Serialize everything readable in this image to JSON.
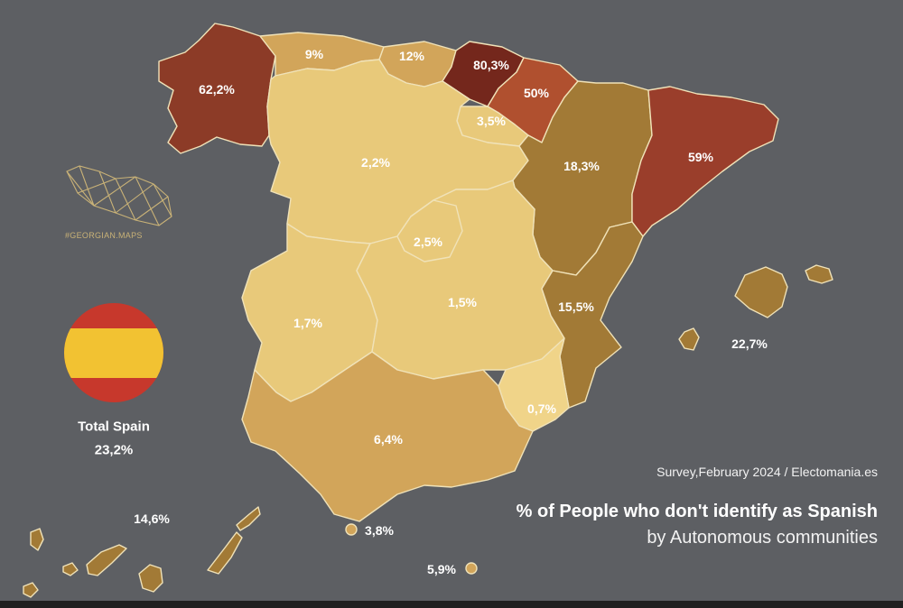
{
  "title": "% of People who don't identify as Spanish",
  "subtitle": "by Autonomous communities",
  "source": "Survey,February 2024 / Electomania.es",
  "brand": "#GEORGIAN.MAPS",
  "total": {
    "label": "Total Spain",
    "value": "23,2%"
  },
  "colors": {
    "background": "#5d5f63",
    "darkest": "#74271c",
    "dark_red": "#8c3b27",
    "red": "#9a3e2b",
    "orange_red": "#b0502f",
    "brown": "#8a6a2e",
    "ochre": "#a27a36",
    "gold": "#d2a55a",
    "light": "#e8c97a",
    "lightest": "#f0d489",
    "flag_red": "#c7382c",
    "flag_yellow": "#f2c232"
  },
  "regions": [
    {
      "name": "Galicia",
      "value": "62,2%"
    },
    {
      "name": "Asturias",
      "value": "9%"
    },
    {
      "name": "Cantabria",
      "value": "12%"
    },
    {
      "name": "Basque Country",
      "value": "80,3%"
    },
    {
      "name": "Navarre",
      "value": "50%"
    },
    {
      "name": "La Rioja",
      "value": "3,5%"
    },
    {
      "name": "Castile and León",
      "value": "2,2%"
    },
    {
      "name": "Aragon",
      "value": "18,3%"
    },
    {
      "name": "Catalonia",
      "value": "59%"
    },
    {
      "name": "Madrid",
      "value": "2,5%"
    },
    {
      "name": "Castilla-La Mancha",
      "value": "1,5%"
    },
    {
      "name": "Extremadura",
      "value": "1,7%"
    },
    {
      "name": "Valencian Community",
      "value": "15,5%"
    },
    {
      "name": "Murcia",
      "value": "0,7%"
    },
    {
      "name": "Andalusia",
      "value": "6,4%"
    },
    {
      "name": "Balearic Islands",
      "value": "22,7%"
    },
    {
      "name": "Canary Islands",
      "value": "14,6%"
    },
    {
      "name": "Ceuta",
      "value": "3,8%"
    },
    {
      "name": "Melilla",
      "value": "5,9%"
    }
  ]
}
